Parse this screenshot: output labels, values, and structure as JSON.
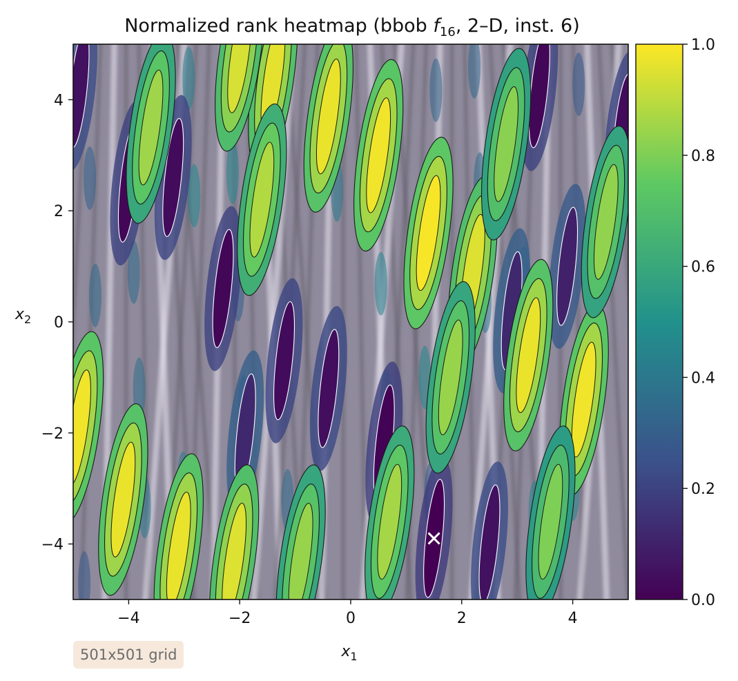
{
  "chart_data": {
    "type": "heatmap",
    "title_main": "Normalized rank heatmap (bbob ",
    "title_func": "f",
    "title_func_sub": "16",
    "title_rest": ", 2–D, inst. 6)",
    "xlabel": "x",
    "xlabel_sub": "1",
    "ylabel": "x",
    "ylabel_sub": "2",
    "xlim": [
      -5,
      5
    ],
    "ylim": [
      -5,
      5
    ],
    "xticks": [
      -4,
      -2,
      0,
      2,
      4
    ],
    "yticks": [
      -4,
      -2,
      0,
      2,
      4
    ],
    "colorbar": {
      "min": 0.0,
      "max": 1.0,
      "ticks": [
        0.0,
        0.2,
        0.4,
        0.6,
        0.8,
        1.0
      ],
      "tick_labels": [
        "0.0",
        "0.2",
        "0.4",
        "0.6",
        "0.8",
        "1.0"
      ],
      "colormap": "viridis",
      "colors": [
        "#440154",
        "#3b528b",
        "#21918c",
        "#5ec962",
        "#fde725"
      ]
    },
    "optimum_marker": {
      "x": 1.5,
      "y": -3.9,
      "symbol": "x",
      "color": "#ffffff"
    },
    "ridges": [
      {
        "x": -4.9,
        "y": -1.9,
        "value": 0.98
      },
      {
        "x": -4.1,
        "y": -3.2,
        "value": 0.97
      },
      {
        "x": -3.1,
        "y": -4.1,
        "value": 0.97
      },
      {
        "x": -2.1,
        "y": -4.3,
        "value": 0.95
      },
      {
        "x": -1.4,
        "y": 4.4,
        "value": 0.96
      },
      {
        "x": -0.4,
        "y": 3.7,
        "value": 0.97
      },
      {
        "x": 0.5,
        "y": 3.0,
        "value": 0.98
      },
      {
        "x": 1.4,
        "y": 1.6,
        "value": 0.99
      },
      {
        "x": 2.2,
        "y": 0.9,
        "value": 0.95
      },
      {
        "x": 3.2,
        "y": -0.6,
        "value": 0.97
      },
      {
        "x": 4.2,
        "y": -1.4,
        "value": 0.98
      },
      {
        "x": -2.0,
        "y": 4.8,
        "value": 0.94
      },
      {
        "x": -3.6,
        "y": 3.5,
        "value": 0.85
      },
      {
        "x": -1.6,
        "y": 2.2,
        "value": 0.88
      },
      {
        "x": 0.7,
        "y": -3.6,
        "value": 0.86
      },
      {
        "x": 1.8,
        "y": -1.0,
        "value": 0.84
      },
      {
        "x": 2.8,
        "y": 3.2,
        "value": 0.82
      },
      {
        "x": 4.6,
        "y": 1.8,
        "value": 0.83
      },
      {
        "x": -0.9,
        "y": -4.3,
        "value": 0.84
      },
      {
        "x": 3.6,
        "y": -3.6,
        "value": 0.8
      }
    ],
    "troughs": [
      {
        "x": -4.0,
        "y": 2.5,
        "value": 0.02
      },
      {
        "x": -3.2,
        "y": 2.6,
        "value": 0.03
      },
      {
        "x": -2.3,
        "y": 0.6,
        "value": 0.02
      },
      {
        "x": -1.2,
        "y": -0.7,
        "value": 0.03
      },
      {
        "x": -0.4,
        "y": -1.2,
        "value": 0.04
      },
      {
        "x": 0.6,
        "y": -2.2,
        "value": 0.01
      },
      {
        "x": 1.5,
        "y": -3.9,
        "value": 0.0
      },
      {
        "x": 2.5,
        "y": -4.0,
        "value": 0.05
      },
      {
        "x": 3.4,
        "y": 4.2,
        "value": 0.02
      },
      {
        "x": 4.9,
        "y": 3.4,
        "value": 0.03
      },
      {
        "x": -4.9,
        "y": 4.2,
        "value": 0.05
      },
      {
        "x": 3.9,
        "y": 1.0,
        "value": 0.1
      },
      {
        "x": 2.9,
        "y": 0.2,
        "value": 0.12
      },
      {
        "x": -1.9,
        "y": -2.0,
        "value": 0.12
      }
    ]
  },
  "note": "501x501 grid"
}
